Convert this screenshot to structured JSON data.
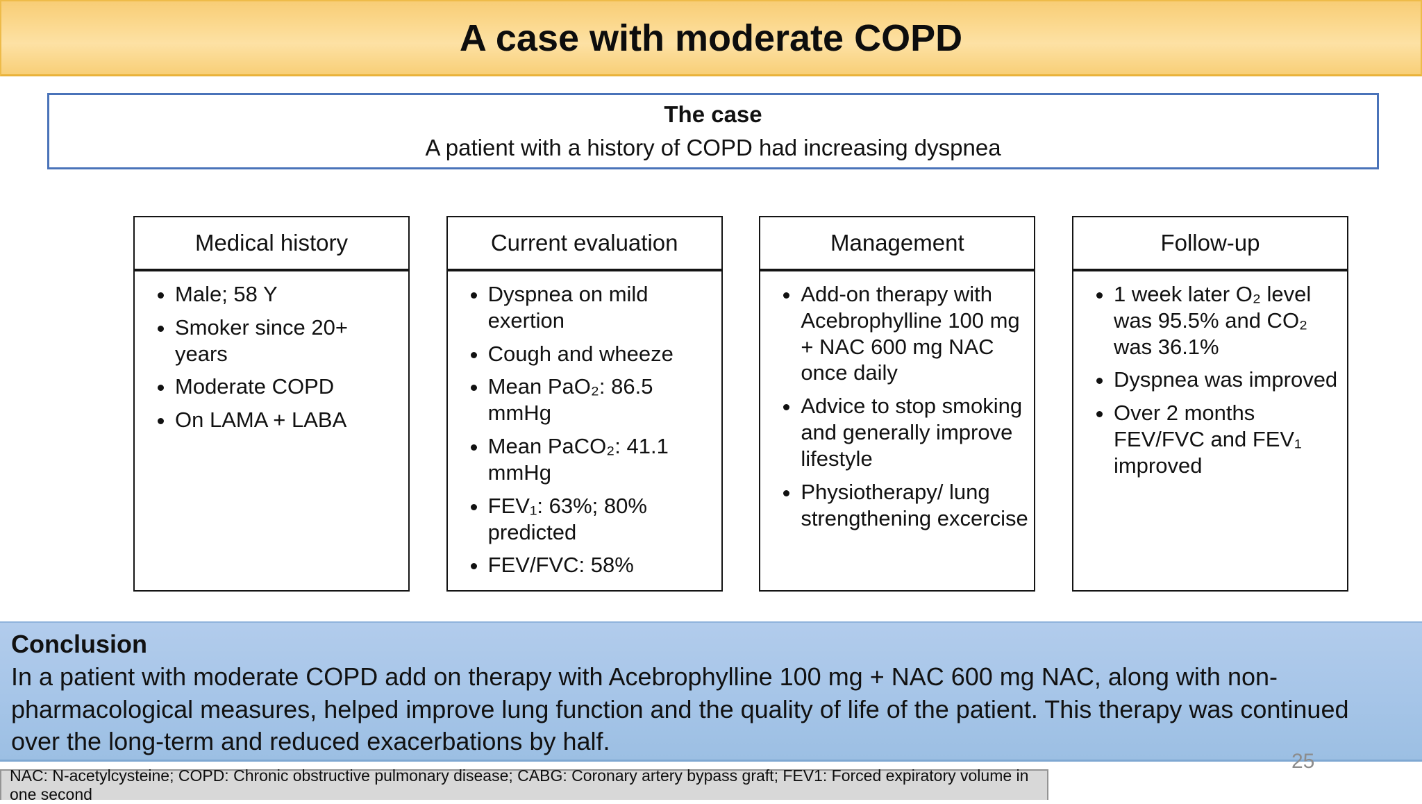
{
  "banner": {
    "title": "A case with moderate COPD"
  },
  "case_box": {
    "heading": "The case",
    "subtitle": "A patient with a history of COPD had increasing dyspnea"
  },
  "columns": [
    {
      "header": "Medical history",
      "bullets": [
        "Male; 58 Y",
        "Smoker since 20+ years",
        "Moderate COPD",
        "On LAMA + LABA"
      ]
    },
    {
      "header": "Current evaluation",
      "bullets": [
        "Dyspnea on mild exertion",
        "Cough and wheeze",
        "Mean PaO₂: 86.5 mmHg",
        "Mean PaCO₂: 41.1 mmHg",
        "FEV₁: 63%; 80% predicted",
        "FEV/FVC: 58%"
      ]
    },
    {
      "header": "Management",
      "bullets": [
        "Add-on therapy with Acebrophylline 100 mg + NAC 600 mg NAC once daily",
        "Advice to stop smoking and generally improve lifestyle",
        "Physiotherapy/ lung strengthening excercise"
      ]
    },
    {
      "header": "Follow-up",
      "bullets": [
        "1 week later O₂ level was 95.5% and CO₂ was 36.1%",
        "Dyspnea was improved",
        "Over 2 months FEV/FVC and FEV₁ improved"
      ]
    }
  ],
  "conclusion": {
    "heading": "Conclusion",
    "text": "In a patient with moderate COPD add on therapy with Acebrophylline 100 mg + NAC 600 mg NAC, along with non-pharmacological measures, helped improve lung function and the quality of life of the patient. This therapy was continued over the long-term and reduced exacerbations by half."
  },
  "footer": {
    "abbreviations": "NAC: N-acetylcysteine; COPD: Chronic obstructive pulmonary disease; CABG: Coronary artery bypass graft; FEV1: Forced expiratory volume in one second"
  },
  "page_number": "25",
  "colors": {
    "banner_gold": "#fbd88d",
    "banner_border": "#e9b23a",
    "case_border_blue": "#4a73b9",
    "conclusion_blue": "#a6c5e8",
    "box_border_black": "#141414",
    "footer_gray": "#d8d8d8",
    "page_number_gray": "#8c8c8c"
  }
}
